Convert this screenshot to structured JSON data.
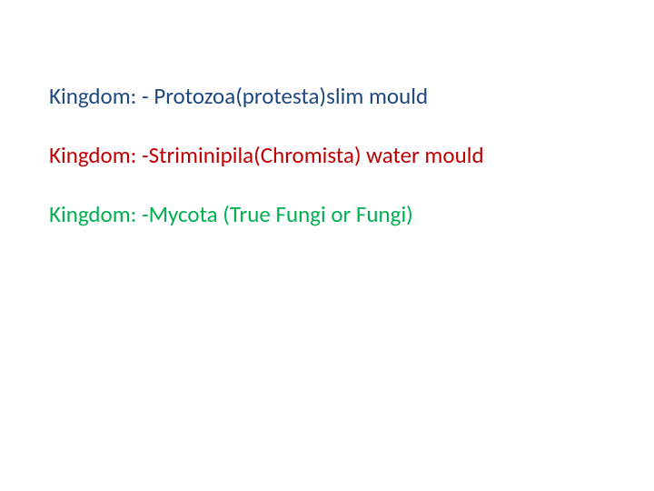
{
  "slide": {
    "background_color": "#ffffff",
    "font_family": "Calibri",
    "lines": [
      {
        "text": "Kingdom: - Protozoa(protesta)slim mould",
        "color": "#1f497d",
        "fontsize_px": 25,
        "bold": false
      },
      {
        "text": "Kingdom: -Striminipila(Chromista) water mould",
        "color": "#c00000",
        "fontsize_px": 25,
        "bold": false
      },
      {
        "text": "Kingdom: -Mycota (True Fungi or Fungi)",
        "color": "#00b050",
        "fontsize_px": 25,
        "bold": false
      }
    ]
  }
}
